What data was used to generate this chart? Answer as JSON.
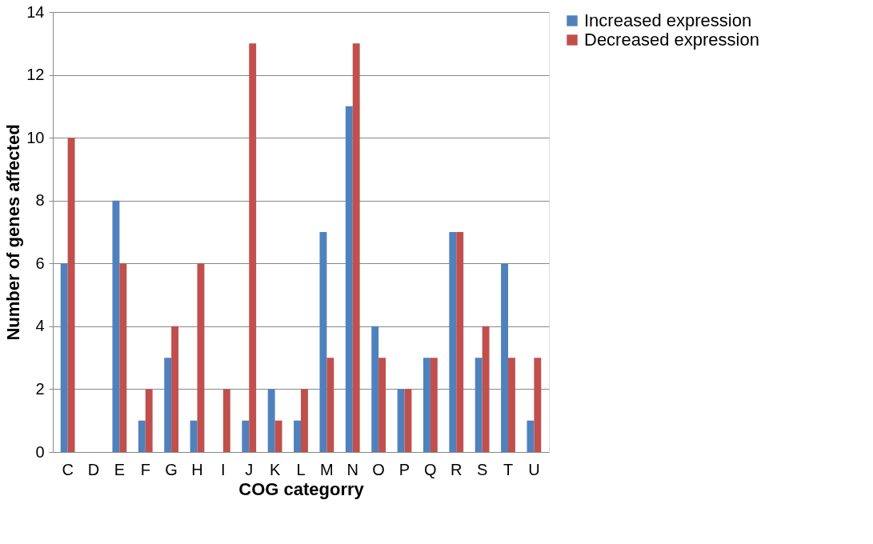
{
  "chart_data": {
    "type": "bar",
    "xlabel": "COG categorry",
    "ylabel": "Number of genes affected",
    "categories": [
      "C",
      "D",
      "E",
      "F",
      "G",
      "H",
      "I",
      "J",
      "K",
      "L",
      "M",
      "N",
      "O",
      "P",
      "Q",
      "R",
      "S",
      "T",
      "U"
    ],
    "series": [
      {
        "name": "Increased expression",
        "color": "#4f81bd",
        "values": [
          6,
          0,
          8,
          1,
          3,
          1,
          0,
          1,
          2,
          1,
          7,
          11,
          4,
          2,
          3,
          7,
          3,
          6,
          1
        ]
      },
      {
        "name": "Decreased expression",
        "color": "#c0504d",
        "values": [
          10,
          0,
          6,
          2,
          4,
          6,
          2,
          13,
          1,
          2,
          3,
          13,
          3,
          2,
          3,
          7,
          4,
          3,
          3
        ]
      }
    ],
    "ylim": [
      0,
      14
    ],
    "yticks": [
      0,
      2,
      4,
      6,
      8,
      10,
      12,
      14
    ],
    "grid": "y",
    "legend": "right"
  }
}
